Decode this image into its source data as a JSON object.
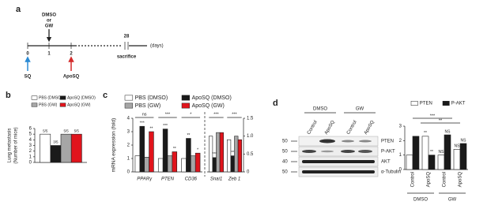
{
  "panel_labels": [
    "a",
    "b",
    "c",
    "d"
  ],
  "timeline": {
    "treatment": [
      "DMSO",
      "or",
      "GW"
    ],
    "day_labels": [
      "0",
      "1",
      "2",
      "28"
    ],
    "unit": "(days)",
    "events": [
      "SQ",
      "ApoSQ",
      "sacrifice"
    ]
  },
  "blot": {
    "groups": [
      "DMSO",
      "GW"
    ],
    "lanes": [
      "Control",
      "ApoSQ",
      "Control",
      "ApoSQ"
    ],
    "markers": [
      "50",
      "50",
      "40",
      "50"
    ],
    "rows": [
      "PTEN",
      "P-AKT",
      "AKT",
      "α-Tubulin"
    ]
  },
  "chart_data": [
    {
      "type": "bar",
      "ylabel": [
        "Lung metastasis",
        "(Number of mice)"
      ],
      "series": [
        {
          "name": "PBS (DMSO)",
          "color": "#ffffff",
          "values": [
            5
          ],
          "value_labels": [
            "5/5"
          ]
        },
        {
          "name": "ApoSQ (DMSO)",
          "color": "#1a1a1a",
          "values": [
            3
          ],
          "value_labels": [
            "3/5"
          ]
        },
        {
          "name": "PBS (GW)",
          "color": "#a6a6a6",
          "values": [
            5
          ],
          "value_labels": [
            "5/5"
          ]
        },
        {
          "name": "ApoSQ (GW)",
          "color": "#e0141c",
          "values": [
            5
          ],
          "value_labels": [
            "5/5"
          ]
        }
      ],
      "ylim": [
        0,
        6
      ],
      "yticks": [
        0,
        1,
        2,
        3,
        4,
        5,
        6
      ]
    },
    {
      "type": "bar",
      "ylabel": [
        "mRNA expression (fold)"
      ],
      "categories": [
        "PPARγ",
        "PTEN",
        "CD36"
      ],
      "series": [
        {
          "name": "PBS (DMSO)",
          "color": "#ffffff",
          "values": [
            1.2,
            1.0,
            1.0
          ]
        },
        {
          "name": "ApoSQ (DMSO)",
          "color": "#1a1a1a",
          "values": [
            3.4,
            3.2,
            2.5
          ],
          "sig": [
            "***",
            "***",
            "**"
          ]
        },
        {
          "name": "PBS (GW)",
          "color": "#a6a6a6",
          "values": [
            1.1,
            1.2,
            1.2
          ]
        },
        {
          "name": "ApoSQ (GW)",
          "color": "#e0141c",
          "values": [
            3.0,
            1.5,
            1.4
          ],
          "sig": [
            "**",
            "**",
            "*"
          ]
        }
      ],
      "group_notes": [
        "ns",
        "***",
        "*"
      ],
      "ylim": [
        0,
        4
      ],
      "yticks": [
        0,
        1,
        2,
        3,
        4
      ]
    },
    {
      "type": "bar",
      "categories": [
        "Snai1",
        "Zeb 1"
      ],
      "series": [
        {
          "color": "#ffffff",
          "values": [
            1.0,
            0.9
          ],
          "axis": "y2"
        },
        {
          "color": "#1a1a1a",
          "values": [
            0.4,
            0.45
          ],
          "axis": "y2",
          "sig": [
            "***",
            "**"
          ]
        },
        {
          "color": "#a6a6a6",
          "values": [
            1.1,
            1.0
          ],
          "axis": "y2"
        },
        {
          "color": "#e0141c",
          "values": [
            1.1,
            0.9
          ],
          "axis": "y2"
        }
      ],
      "group_notes": [
        "***",
        "***"
      ],
      "y2lim": [
        0,
        1.5
      ],
      "y2ticks": [
        0,
        0.5,
        {
          "value": 1,
          "label": "1.0"
        },
        1.5
      ]
    },
    {
      "type": "bar",
      "categories": [
        "Control",
        "ApoSQ",
        "Control",
        "ApoSQ"
      ],
      "groups": [
        "DMSO",
        "GW"
      ],
      "series": [
        {
          "name": "PTEN",
          "color": "#ffffff",
          "values": [
            1.0,
            2.3,
            1.0,
            1.4
          ],
          "sig": [
            null,
            "**",
            "NS",
            "NS"
          ]
        },
        {
          "name": "P-AKT",
          "color": "#1a1a1a",
          "values": [
            2.3,
            1.0,
            2.4,
            1.8
          ],
          "sig": [
            null,
            "**",
            "NS",
            "NS"
          ]
        }
      ],
      "group_notes": [
        "***",
        "**"
      ],
      "ylim": [
        0,
        3
      ],
      "yticks": [
        0,
        1,
        2,
        3
      ]
    }
  ]
}
